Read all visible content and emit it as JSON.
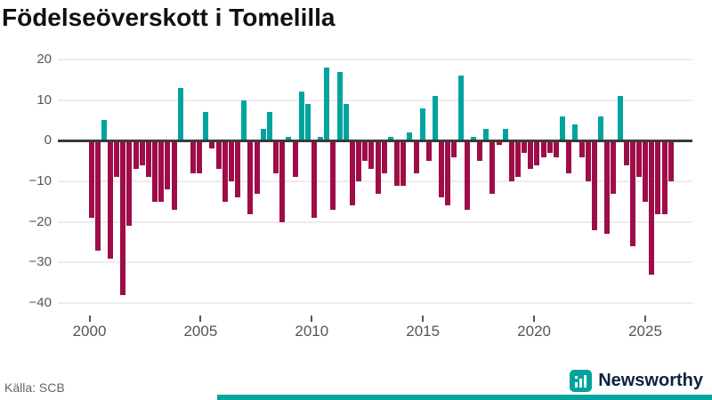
{
  "title": "Födelseöverskott i Tomelilla",
  "source": "Källa: SCB",
  "brand": {
    "name": "Newsworthy",
    "icon": "bar-chart-icon"
  },
  "colors": {
    "positive": "#00a49e",
    "negative": "#9e0d48",
    "grid": "#ececec",
    "zero_line": "#3a3a3a",
    "axis_text": "#555555",
    "brand_teal": "#00a49e",
    "brand_navy": "#0d2240"
  },
  "chart_data": {
    "type": "bar",
    "title": "Födelseöverskott i Tomelilla",
    "xlabel": "",
    "ylabel": "",
    "ylim": [
      -40,
      20
    ],
    "grid": true,
    "x_range_years": [
      2000,
      2026
    ],
    "x_tick_labels": [
      "2000",
      "2005",
      "2010",
      "2015",
      "2020",
      "2025"
    ],
    "y_tick_labels": [
      "20",
      "10",
      "0",
      "−10",
      "−20",
      "−30",
      "−40"
    ],
    "y_tick_values": [
      20,
      10,
      0,
      -10,
      -20,
      -30,
      -40
    ],
    "series_note": "births minus deaths per period, read from bars left to right",
    "values": [
      -19,
      -27,
      5,
      -29,
      -9,
      -38,
      -21,
      -7,
      -6,
      -9,
      -15,
      -15,
      -12,
      -17,
      13,
      0,
      -8,
      -8,
      7,
      -2,
      -7,
      -15,
      -10,
      -14,
      10,
      -18,
      -13,
      3,
      7,
      -8,
      -20,
      1,
      -9,
      12,
      9,
      -19,
      1,
      18,
      -17,
      17,
      9,
      -16,
      -10,
      -5,
      -7,
      -13,
      -8,
      1,
      -11,
      -11,
      2,
      -8,
      8,
      -5,
      11,
      -14,
      -16,
      -4,
      16,
      -17,
      1,
      -5,
      3,
      -13,
      -1,
      3,
      -10,
      -9,
      -3,
      -7,
      -6,
      -4,
      -3,
      -4,
      6,
      -8,
      4,
      -4,
      -10,
      -22,
      6,
      -23,
      -13,
      11,
      -6,
      -26,
      -9,
      -15,
      -33,
      -18,
      -18,
      -10
    ]
  }
}
